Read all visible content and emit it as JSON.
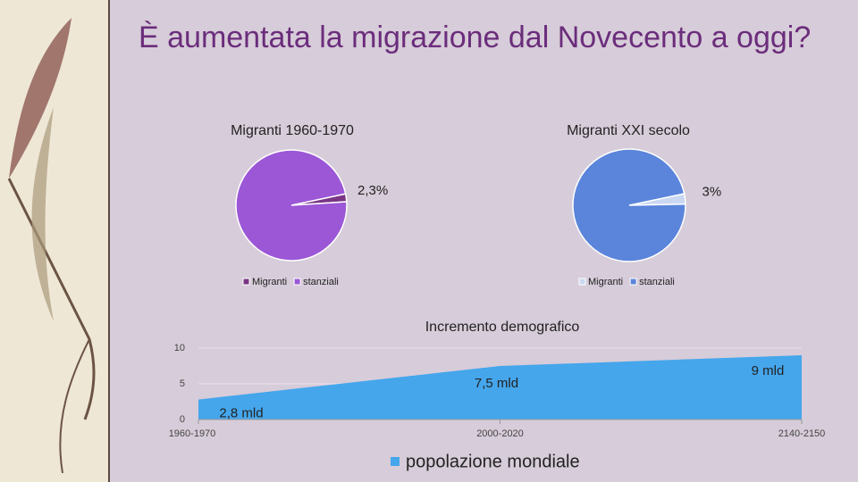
{
  "title": "È aumentata la migrazione dal Novecento a oggi?",
  "chart_data": [
    {
      "type": "pie",
      "title": "Migranti 1960-1970",
      "categories": [
        "Migranti",
        "stanziali"
      ],
      "values": [
        2.3,
        97.7
      ],
      "value_labels": [
        "2,3%",
        null
      ],
      "colors": [
        "#7a3585",
        "#9b57d6"
      ]
    },
    {
      "type": "pie",
      "title": "Migranti XXI secolo",
      "categories": [
        "Migranti",
        "stanziali"
      ],
      "values": [
        3,
        97
      ],
      "value_labels": [
        "3%",
        null
      ],
      "colors": [
        "#c9d7f2",
        "#5b85db"
      ]
    },
    {
      "type": "area",
      "title": "Incremento demografico",
      "categories": [
        "1960-1970",
        "2000-2020",
        "2140-2150"
      ],
      "series": [
        {
          "name": "popolazione mondiale",
          "color": "#45a6ec",
          "values": [
            2.8,
            7.5,
            9
          ],
          "value_labels": [
            "2,8 mld",
            "7,5 mld",
            "9 mld"
          ]
        }
      ],
      "ylim": [
        0,
        10
      ],
      "yticks": [
        0,
        5,
        10
      ],
      "grid": true
    }
  ]
}
